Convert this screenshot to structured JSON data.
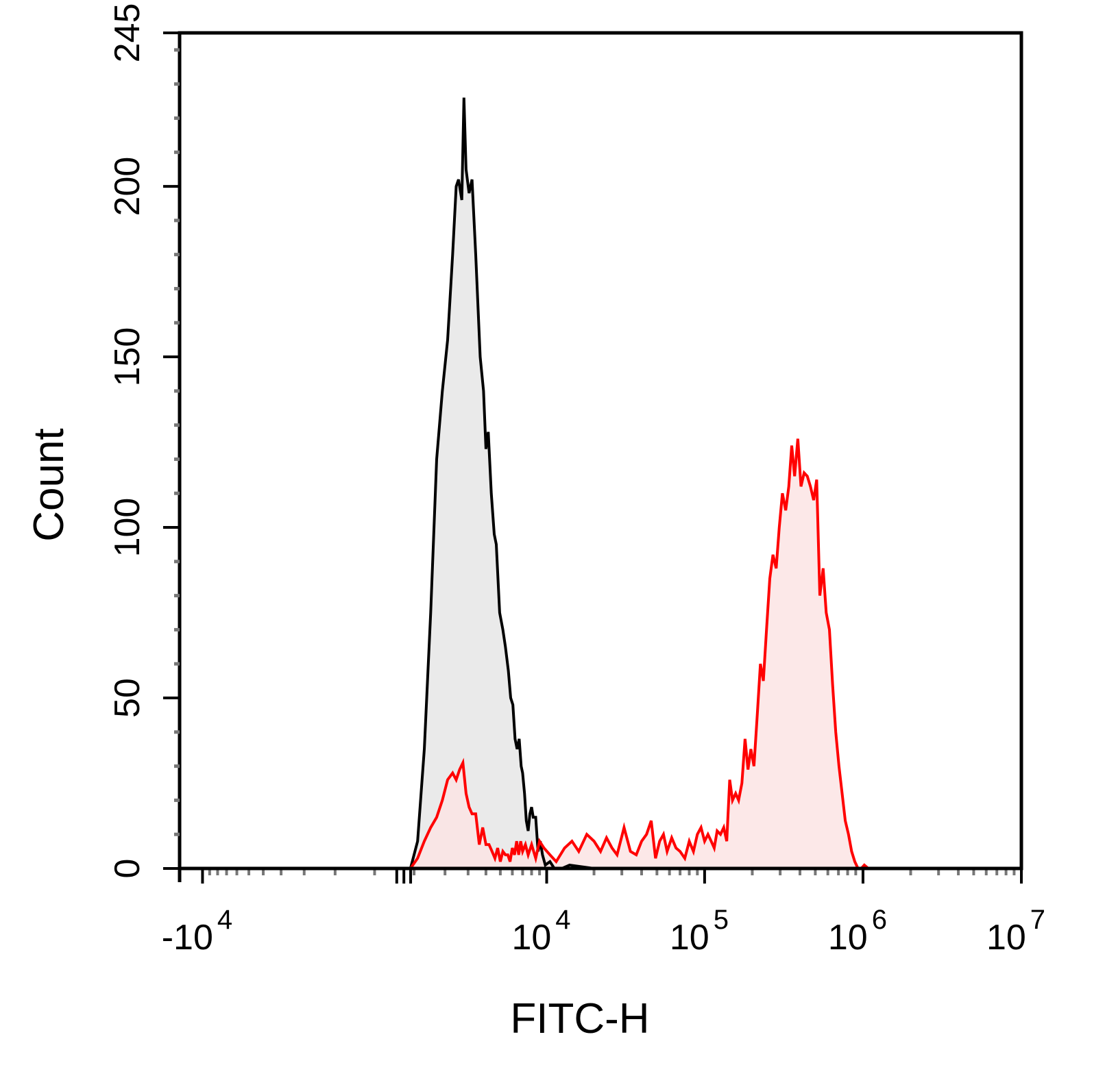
{
  "chart_data": {
    "type": "area",
    "xlabel": "FITC-H",
    "ylabel": "Count",
    "x_scale": "biexponential",
    "xlim": [
      -14000,
      10000000
    ],
    "ylim": [
      0,
      245
    ],
    "x_ticks": [
      {
        "value": -10000,
        "base": "-10",
        "exp": "4"
      },
      {
        "value": 10000,
        "base": "10",
        "exp": "4"
      },
      {
        "value": 100000,
        "base": "10",
        "exp": "5"
      },
      {
        "value": 1000000,
        "base": "10",
        "exp": "6"
      },
      {
        "value": 10000000,
        "base": "10",
        "exp": "7"
      }
    ],
    "y_ticks": [
      0,
      50,
      100,
      150,
      200,
      245
    ],
    "grid": false,
    "legend": "none",
    "series": [
      {
        "color": "#000000",
        "fill": "#e6e6e6",
        "points": [
          [
            900,
            0
          ],
          [
            1100,
            8
          ],
          [
            1300,
            35
          ],
          [
            1500,
            75
          ],
          [
            1700,
            120
          ],
          [
            1900,
            140
          ],
          [
            2100,
            155
          ],
          [
            2300,
            180
          ],
          [
            2450,
            200
          ],
          [
            2550,
            202
          ],
          [
            2700,
            196
          ],
          [
            2800,
            226
          ],
          [
            2900,
            205
          ],
          [
            3050,
            198
          ],
          [
            3200,
            202
          ],
          [
            3400,
            180
          ],
          [
            3650,
            150
          ],
          [
            3850,
            140
          ],
          [
            4000,
            123
          ],
          [
            4150,
            128
          ],
          [
            4350,
            110
          ],
          [
            4550,
            98
          ],
          [
            4700,
            95
          ],
          [
            4950,
            75
          ],
          [
            5200,
            70
          ],
          [
            5400,
            65
          ],
          [
            5650,
            58
          ],
          [
            5850,
            50
          ],
          [
            6050,
            48
          ],
          [
            6250,
            38
          ],
          [
            6450,
            35
          ],
          [
            6650,
            38
          ],
          [
            6850,
            30
          ],
          [
            7000,
            28
          ],
          [
            7200,
            22
          ],
          [
            7400,
            14
          ],
          [
            7600,
            11
          ],
          [
            7800,
            16
          ],
          [
            8000,
            18
          ],
          [
            8200,
            15
          ],
          [
            8500,
            15
          ],
          [
            8800,
            5
          ],
          [
            9100,
            8
          ],
          [
            9400,
            4
          ],
          [
            9800,
            1
          ],
          [
            10500,
            2
          ],
          [
            11200,
            0
          ],
          [
            12500,
            0
          ],
          [
            14000,
            1
          ],
          [
            20000,
            0
          ],
          [
            30000,
            0
          ],
          [
            60000,
            0
          ],
          [
            120000,
            0
          ],
          [
            400000,
            0
          ],
          [
            1000000,
            0
          ],
          [
            5000000,
            0
          ],
          [
            7500000,
            0
          ],
          [
            8500000,
            0
          ]
        ]
      },
      {
        "color": "#ff0000",
        "fill": "#fbe4e4",
        "points": [
          [
            900,
            0
          ],
          [
            1100,
            3
          ],
          [
            1300,
            8
          ],
          [
            1500,
            12
          ],
          [
            1700,
            15
          ],
          [
            1900,
            20
          ],
          [
            2100,
            26
          ],
          [
            2300,
            28
          ],
          [
            2450,
            26
          ],
          [
            2600,
            29
          ],
          [
            2750,
            31
          ],
          [
            2900,
            22
          ],
          [
            3050,
            18
          ],
          [
            3200,
            16
          ],
          [
            3400,
            16
          ],
          [
            3600,
            7
          ],
          [
            3800,
            12
          ],
          [
            4000,
            7
          ],
          [
            4200,
            7
          ],
          [
            4400,
            5
          ],
          [
            4600,
            3
          ],
          [
            4800,
            6
          ],
          [
            5000,
            2
          ],
          [
            5200,
            5
          ],
          [
            5400,
            4
          ],
          [
            5600,
            4
          ],
          [
            5800,
            2
          ],
          [
            6000,
            6
          ],
          [
            6200,
            4
          ],
          [
            6400,
            8
          ],
          [
            6600,
            4
          ],
          [
            6800,
            8
          ],
          [
            7000,
            5
          ],
          [
            7300,
            7
          ],
          [
            7600,
            4
          ],
          [
            8000,
            7
          ],
          [
            8500,
            3
          ],
          [
            9000,
            8
          ],
          [
            9600,
            6
          ],
          [
            10500,
            4
          ],
          [
            11500,
            2
          ],
          [
            13000,
            6
          ],
          [
            14500,
            8
          ],
          [
            16000,
            5
          ],
          [
            18000,
            10
          ],
          [
            20000,
            8
          ],
          [
            22000,
            5
          ],
          [
            24000,
            9
          ],
          [
            26000,
            6
          ],
          [
            28000,
            4
          ],
          [
            31000,
            12
          ],
          [
            34000,
            5
          ],
          [
            37000,
            4
          ],
          [
            40000,
            8
          ],
          [
            43000,
            10
          ],
          [
            46000,
            14
          ],
          [
            49000,
            3
          ],
          [
            52000,
            8
          ],
          [
            55000,
            10
          ],
          [
            58000,
            5
          ],
          [
            62000,
            9
          ],
          [
            66000,
            6
          ],
          [
            70000,
            5
          ],
          [
            75000,
            3
          ],
          [
            80000,
            8
          ],
          [
            85000,
            5
          ],
          [
            90000,
            10
          ],
          [
            95000,
            12
          ],
          [
            100000,
            8
          ],
          [
            105000,
            10
          ],
          [
            110000,
            8
          ],
          [
            115000,
            6
          ],
          [
            120000,
            11
          ],
          [
            126000,
            10
          ],
          [
            132000,
            12
          ],
          [
            138000,
            8
          ],
          [
            144000,
            26
          ],
          [
            150000,
            20
          ],
          [
            157000,
            22
          ],
          [
            164000,
            20
          ],
          [
            172000,
            25
          ],
          [
            180000,
            38
          ],
          [
            188000,
            29
          ],
          [
            196000,
            35
          ],
          [
            205000,
            30
          ],
          [
            215000,
            45
          ],
          [
            225000,
            60
          ],
          [
            235000,
            55
          ],
          [
            246000,
            70
          ],
          [
            258000,
            85
          ],
          [
            270000,
            92
          ],
          [
            283000,
            88
          ],
          [
            296000,
            100
          ],
          [
            310000,
            110
          ],
          [
            325000,
            105
          ],
          [
            340000,
            112
          ],
          [
            355000,
            124
          ],
          [
            370000,
            115
          ],
          [
            388000,
            126
          ],
          [
            406000,
            112
          ],
          [
            425000,
            116
          ],
          [
            445000,
            115
          ],
          [
            466000,
            112
          ],
          [
            488000,
            108
          ],
          [
            510000,
            114
          ],
          [
            534000,
            80
          ],
          [
            560000,
            88
          ],
          [
            586000,
            75
          ],
          [
            614000,
            70
          ],
          [
            643000,
            54
          ],
          [
            673000,
            40
          ],
          [
            705000,
            30
          ],
          [
            738000,
            22
          ],
          [
            773000,
            14
          ],
          [
            810000,
            10
          ],
          [
            848000,
            5
          ],
          [
            888000,
            2
          ],
          [
            930000,
            0
          ],
          [
            975000,
            0
          ],
          [
            1020000,
            1
          ],
          [
            1080000,
            0
          ],
          [
            2000000,
            0
          ],
          [
            5000000,
            0
          ],
          [
            8500000,
            0
          ]
        ]
      }
    ]
  }
}
